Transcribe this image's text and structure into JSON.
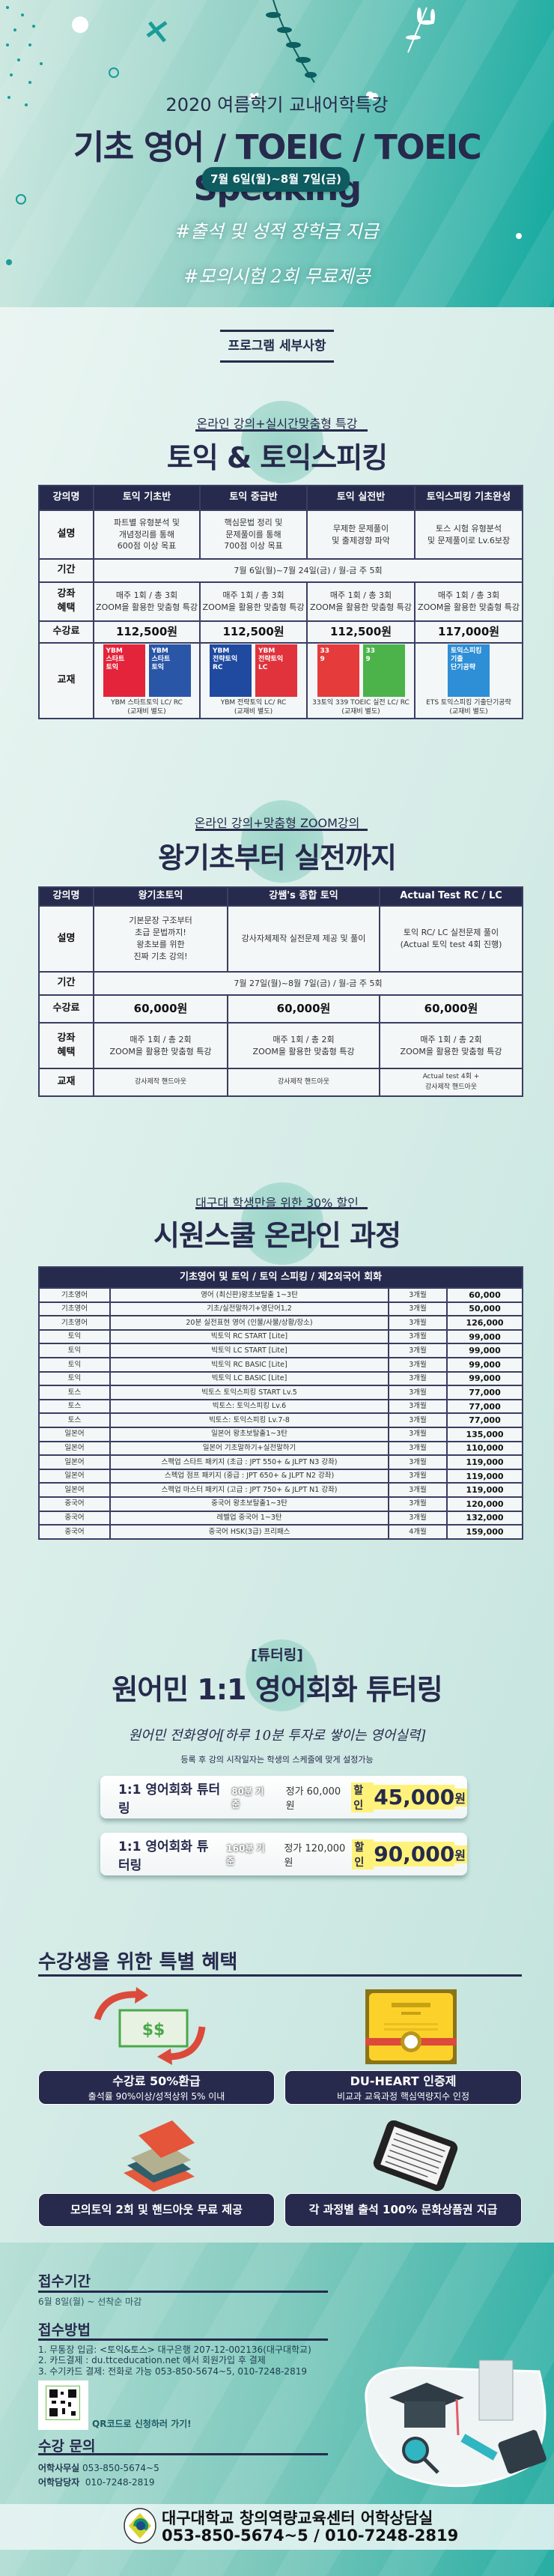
{
  "hero": {
    "subtitle": "2020 여름학기 교내어학특강",
    "title": "기초 영어 / TOEIC / TOEIC Speaking",
    "dates": "7월 6일(월)~8월 7일(금)",
    "hashtags": [
      "#출석 및 성적 장학금 지급",
      "#모의시험 2회 무료제공"
    ]
  },
  "program_heading": "프로그램 세부사항",
  "section1": {
    "subtitle": "온라인 강의+실시간맞춤형 특강",
    "title": "토익 & 토익스피킹",
    "headers": [
      "강의명",
      "토익 기초반",
      "토익 중급반",
      "토익 실전반",
      "토익스피킹 기초완성"
    ],
    "desc_label": "설명",
    "desc": [
      "파트별 유형분석 및\n개념정리를 통해\n600점 이상 목표",
      "핵심문법 정리 및\n문제풀이를 통해\n700점 이상 목표",
      "무제한 문제풀이\n및 출제경향 파악",
      "토스 시험 유형분석\n및 문제풀이로 Lv.6보장"
    ],
    "period_label": "기간",
    "period": "7월 6일(월)~7월 24일(금) / 월-금  주 5회",
    "benefit_label": "강좌\n혜택",
    "benefit": [
      "매주 1회 / 총 3회\nZOOM을 활용한 맞춤형 특강",
      "매주 1회 / 총 3회\nZOOM을 활용한 맞춤형 특강",
      "매주 1회 / 총 3회\nZOOM을 활용한 맞춤형 특강",
      "매주 1회 / 총 3회\nZOOM을 활용한 맞춤형 특강"
    ],
    "fee_label": "수강료",
    "fees": [
      "112,500원",
      "112,500원",
      "112,500원",
      "117,000원"
    ],
    "book_label": "교재",
    "books": [
      {
        "caption": "YBM 스타트토익 LC/ RC\n(교재비 별도)",
        "covers": [
          {
            "text": "YBM\n스타트\n토익",
            "color": "#e3243b"
          },
          {
            "text": "YBM\n스타트\n토익",
            "color": "#2a56a8"
          }
        ]
      },
      {
        "caption": "YBM 전략토익 LC/ RC\n(교재비 별도)",
        "covers": [
          {
            "text": "YBM\n전략토익\nRC",
            "color": "#1f4aa0"
          },
          {
            "text": "YBM\n전략토익\nLC",
            "color": "#e0333c"
          }
        ]
      },
      {
        "caption": "33토익 339 TOEIC 실전 LC/ RC\n(교재비 별도)",
        "covers": [
          {
            "text": "33\n9",
            "color": "#e53b3b"
          },
          {
            "text": "33\n9",
            "color": "#4cb34a"
          }
        ]
      },
      {
        "caption": "ETS 토익스피킹 기출단기공략\n(교재비 별도)",
        "covers": [
          {
            "text": "토익스피킹\n기출\n단기공략",
            "color": "#2e8fd6"
          }
        ]
      }
    ]
  },
  "section2": {
    "subtitle": "온라인 강의+맞춤형 ZOOM강의",
    "title": "왕기초부터 실전까지",
    "headers": [
      "강의명",
      "왕기초토익",
      "강쌤's 종합 토익",
      "Actual Test RC / LC"
    ],
    "desc_label": "설명",
    "desc": [
      "기본문장 구조부터\n초급 문법까지!\n왕초보를 위한\n진짜 기초 강의!",
      "강사자체제작 실전문제 제공 및 풀이",
      "토익 RC/ LC 실전문제 풀이\n(Actual 토익 test 4회 진행)"
    ],
    "period_label": "기간",
    "period": "7월 27일(월)~8월 7일(금) / 월-금  주 5회",
    "fee_label": "수강료",
    "fees": [
      "60,000원",
      "60,000원",
      "60,000원"
    ],
    "benefit_label": "강좌\n혜택",
    "benefit": [
      "매주 1회 / 총 2회\nZOOM을 활용한 맞춤형 특강",
      "매주 1회 / 총 2회\nZOOM을 활용한 맞춤형 특강",
      "매주 1회 / 총 2회\nZOOM을 활용한 맞춤형 특강"
    ],
    "book_label": "교재",
    "books": [
      "강사제작 핸드아웃",
      "강사제작 핸드아웃",
      "Actual test 4회 +\n강사제작 핸드아웃"
    ]
  },
  "section3": {
    "subtitle": "대구대 학생만을 위한 30% 할인",
    "title": "시원스쿨 온라인 과정",
    "table_header": "기초영어 및 토익 / 토익 스피킹 / 제2외국어 회화",
    "rows": [
      [
        "기초영어",
        "영어 (최신판)왕초보탈출 1~3탄",
        "3개월",
        "60,000"
      ],
      [
        "기초영어",
        "기초/실전말하기+영단어1,2",
        "3개월",
        "50,000"
      ],
      [
        "기초영어",
        "20분 실전표현 영어 (인물/사물/상황/장소)",
        "3개월",
        "126,000"
      ],
      [
        "토익",
        "빅토익 RC START [Lite]",
        "3개월",
        "99,000"
      ],
      [
        "토익",
        "빅토익 LC START [Lite]",
        "3개월",
        "99,000"
      ],
      [
        "토익",
        "빅토익 RC BASIC [Lite]",
        "3개월",
        "99,000"
      ],
      [
        "토익",
        "빅토익 LC BASIC [Lite]",
        "3개월",
        "99,000"
      ],
      [
        "토스",
        "빅토스 토익스피킹 START Lv.5",
        "3개월",
        "77,000"
      ],
      [
        "토스",
        "빅토스: 토익스피킹 Lv.6",
        "3개월",
        "77,000"
      ],
      [
        "토스",
        "빅토스: 토익스피킹 Lv.7-8",
        "3개월",
        "77,000"
      ],
      [
        "일본어",
        "일본어 왕초보탈출1~3탄",
        "3개월",
        "135,000"
      ],
      [
        "일본어",
        "일본어 기초말하기+실전말하기",
        "3개월",
        "110,000"
      ],
      [
        "일본어",
        "스펙업 스타트 패키지 (초급 : JPT 550+ & JLPT N3 강좌)",
        "3개월",
        "119,000"
      ],
      [
        "일본어",
        "스펙업 점프 패키지 (중급 : JPT 650+ & JLPT N2 강좌)",
        "3개월",
        "119,000"
      ],
      [
        "일본어",
        "스펙업 마스터 패키지 (고급 : JPT 750+ & JLPT N1 강좌)",
        "3개월",
        "119,000"
      ],
      [
        "중국어",
        "중국어 왕초보탈출1~3탄",
        "3개월",
        "120,000"
      ],
      [
        "중국어",
        "레벨업 중국어 1~3탄",
        "3개월",
        "132,000"
      ],
      [
        "중국어",
        "중국어 HSK(3급) 프리패스",
        "4개월",
        "159,000"
      ]
    ]
  },
  "section4": {
    "tag": "[튜터링]",
    "title": "원어민 1:1 영어회화 튜터링",
    "slogan": "원어민 전화영어[하루 10분 투자로 쌓이는 영어실력]",
    "note": "등록 후 강의 시작일자는 학생의 스케줄에 맞게 설정가능",
    "cards": [
      {
        "title": "1:1 영어회화 튜터링",
        "basis": "80분 기준",
        "regular": "정가 60,000원",
        "discount_label": "할인",
        "price": "45,000",
        "unit": "원"
      },
      {
        "title": "1:1 영어회화 튜터링",
        "basis": "160분 기준",
        "regular": "정가 120,000원",
        "discount_label": "할인",
        "price": "90,000",
        "unit": "원"
      }
    ]
  },
  "section5": {
    "title": "수강생을 위한 특별 혜택",
    "benefits": [
      {
        "title": "수강료 50%환급",
        "desc": "출석률 90%이상/성적상위 5% 이내",
        "icon": "money-refund-icon"
      },
      {
        "title": "DU-HEART 인증제",
        "desc": "비교과 교육과정 핵심역량지수 인정",
        "icon": "certificate-icon"
      },
      {
        "title": "모의토익 2회 및 핸드아웃 무료 제공",
        "icon": "books-icon"
      },
      {
        "title": "각 과정별 출석 100% 문화상품권 지급",
        "icon": "tablet-icon"
      }
    ]
  },
  "footer": {
    "period_title": "접수기간",
    "period": "6월 8일(월) ~ 선착순 마감",
    "method_title": "접수방법",
    "methods": [
      "1. 무통장 입금: <토익&토스> 대구은행 207-12-002136(대구대학교)",
      "2. 카드결제 : du.ttceducation.net 에서 회원가입 후 결제",
      "3. 수기카드 결제: 전화로 가능 053-850-5674~5, 010-7248-2819"
    ],
    "qr_text": "QR코드로 신청하러 가기!",
    "contact_title": "수강 문의",
    "contacts": [
      {
        "label": "어학사무실",
        "value": "053-850-5674~5"
      },
      {
        "label": "어학담당자",
        "value": "010-7248-2819"
      }
    ],
    "bar_line1": "대구대학교 창의역량교육센터 어학상담실",
    "bar_line2": "053-850-5674~5 / 010-7248-2819",
    "logo_text": "DAEGU UNIVERSITY 1956"
  },
  "colors": {
    "navy": "#262a4c",
    "teal": "#12a99f",
    "highlight": "#fff27a"
  }
}
